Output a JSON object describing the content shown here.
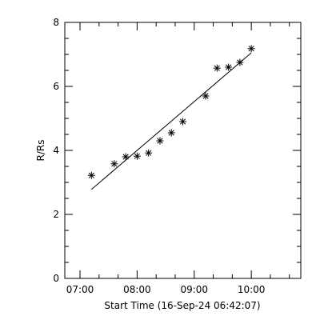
{
  "chart_data": {
    "type": "scatter",
    "title": "",
    "xlabel": "Start Time (16-Sep-24 06:42:07)",
    "ylabel": "R/Rs",
    "xlim": [
      "06:44",
      "10:52"
    ],
    "ylim": [
      0,
      8
    ],
    "x_ticks": [
      "07:00",
      "08:00",
      "09:00",
      "10:00"
    ],
    "y_ticks": [
      0,
      2,
      4,
      6,
      8
    ],
    "grid": false,
    "marker": "asterisk",
    "points": [
      {
        "x": "07:12",
        "y": 3.22
      },
      {
        "x": "07:36",
        "y": 3.58
      },
      {
        "x": "07:48",
        "y": 3.8
      },
      {
        "x": "08:00",
        "y": 3.82
      },
      {
        "x": "08:12",
        "y": 3.92
      },
      {
        "x": "08:24",
        "y": 4.3
      },
      {
        "x": "08:36",
        "y": 4.55
      },
      {
        "x": "08:48",
        "y": 4.9
      },
      {
        "x": "09:12",
        "y": 5.7
      },
      {
        "x": "09:24",
        "y": 6.57
      },
      {
        "x": "09:36",
        "y": 6.6
      },
      {
        "x": "09:48",
        "y": 6.75
      },
      {
        "x": "10:00",
        "y": 7.18
      }
    ],
    "fit_line": [
      {
        "x": "07:12",
        "y": 2.78
      },
      {
        "x": "10:00",
        "y": 7.05
      }
    ]
  }
}
